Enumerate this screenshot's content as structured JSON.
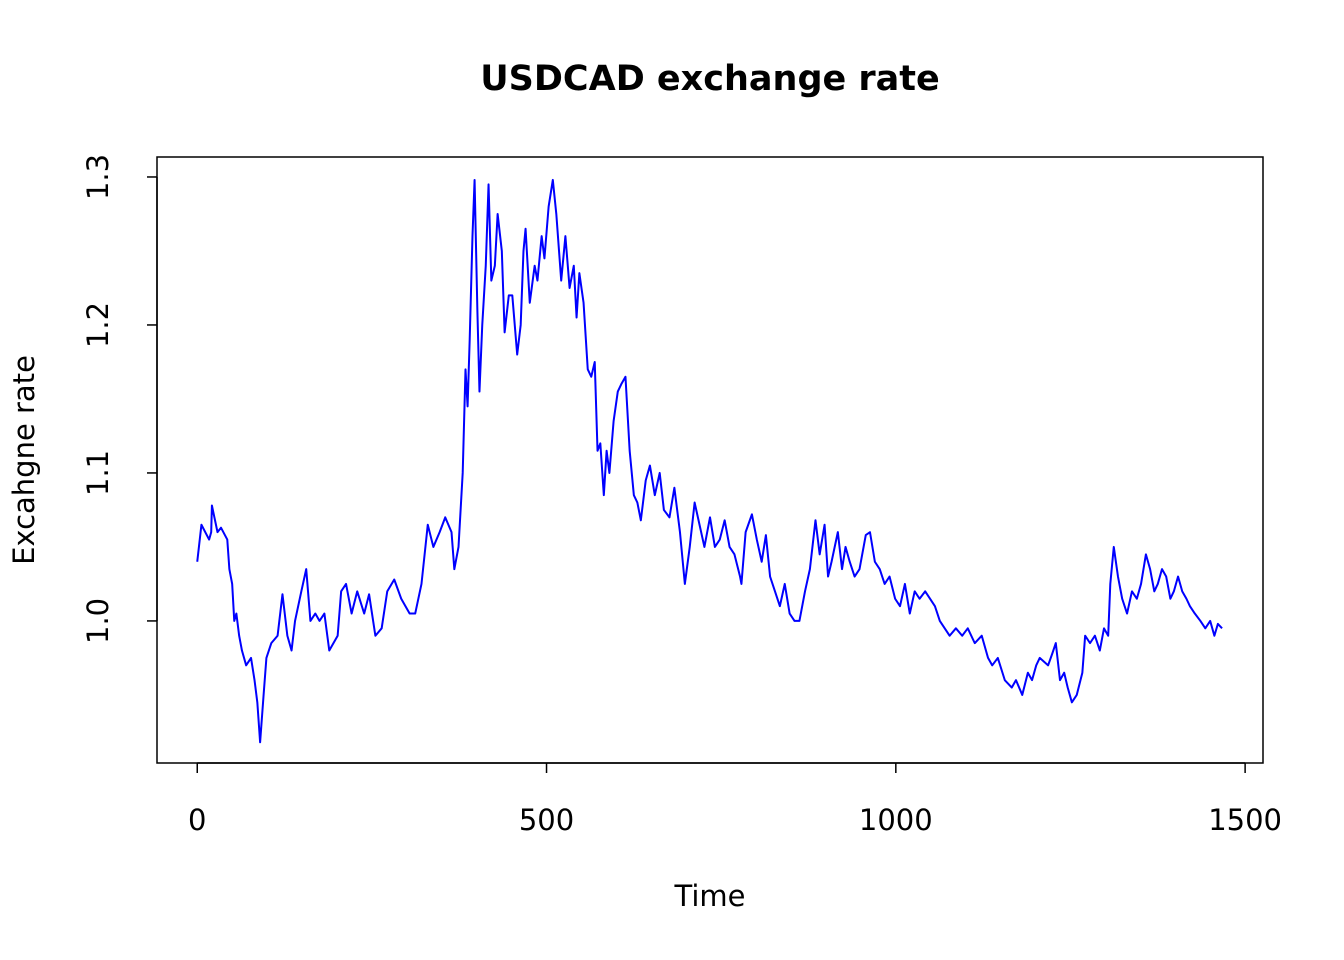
{
  "chart_data": {
    "type": "line",
    "title": "USDCAD exchange rate",
    "x_label": "Time",
    "y_label": "Excahgne rate",
    "xlim": [
      -57.6,
      1525.6
    ],
    "ylim": [
      0.904,
      1.3135
    ],
    "xticks": [
      0,
      500,
      1000,
      1500
    ],
    "yticks": [
      {
        "value": 1,
        "label": "1.0"
      },
      1.1,
      1.2,
      1.3
    ],
    "grid": false,
    "series": [
      {
        "color": "#0000ff",
        "x": [
          0,
          6,
          17,
          20,
          21,
          29,
          34,
          43,
          46,
          50,
          53,
          56,
          60,
          64,
          70,
          77,
          82,
          86,
          90,
          95,
          99,
          106,
          115,
          122,
          129,
          135,
          140,
          149,
          156,
          162,
          169,
          175,
          182,
          189,
          201,
          206,
          213,
          221,
          229,
          239,
          246,
          255,
          264,
          272,
          282,
          292,
          304,
          312,
          321,
          330,
          338,
          347,
          355,
          364,
          368,
          374,
          380,
          384,
          387,
          390,
          394,
          397,
          401,
          404,
          408,
          413,
          417,
          421,
          426,
          430,
          436,
          440,
          446,
          451,
          458,
          463,
          467,
          470,
          476,
          483,
          487,
          493,
          497,
          503,
          509,
          514,
          521,
          527,
          533,
          539,
          543,
          547,
          553,
          559,
          564,
          569,
          573,
          577,
          582,
          586,
          590,
          596,
          602,
          607,
          613,
          619,
          625,
          630,
          635,
          642,
          648,
          655,
          662,
          668,
          676,
          683,
          691,
          698,
          705,
          712,
          719,
          726,
          734,
          741,
          748,
          755,
          762,
          769,
          777,
          779,
          785,
          794,
          801,
          808,
          814,
          820,
          827,
          834,
          841,
          848,
          855,
          862,
          870,
          877,
          885,
          891,
          898,
          903,
          908,
          917,
          923,
          928,
          934,
          941,
          948,
          957,
          963,
          970,
          977,
          984,
          991,
          999,
          1006,
          1013,
          1020,
          1027,
          1034,
          1042,
          1056,
          1063,
          1077,
          1086,
          1095,
          1103,
          1113,
          1123,
          1132,
          1138,
          1146,
          1156,
          1166,
          1172,
          1181,
          1189,
          1195,
          1201,
          1206,
          1218,
          1224,
          1229,
          1235,
          1241,
          1246,
          1252,
          1259,
          1267,
          1271,
          1278,
          1285,
          1292,
          1298,
          1304,
          1307,
          1312,
          1318,
          1324,
          1331,
          1338,
          1345,
          1351,
          1358,
          1364,
          1370,
          1375,
          1381,
          1387,
          1393,
          1398,
          1404,
          1410,
          1416,
          1421,
          1428,
          1436,
          1443,
          1450,
          1456,
          1461,
          1467
        ],
        "values": [
          1.04,
          1.065,
          1.055,
          1.06,
          1.078,
          1.06,
          1.063,
          1.055,
          1.035,
          1.025,
          1.0,
          1.005,
          0.99,
          0.98,
          0.97,
          0.975,
          0.96,
          0.945,
          0.918,
          0.95,
          0.975,
          0.985,
          0.99,
          1.018,
          0.99,
          0.98,
          1.0,
          1.02,
          1.035,
          1.0,
          1.005,
          1.0,
          1.005,
          0.98,
          0.99,
          1.02,
          1.025,
          1.005,
          1.02,
          1.005,
          1.018,
          0.99,
          0.995,
          1.02,
          1.028,
          1.015,
          1.005,
          1.005,
          1.025,
          1.065,
          1.05,
          1.06,
          1.07,
          1.06,
          1.035,
          1.05,
          1.1,
          1.17,
          1.145,
          1.19,
          1.26,
          1.298,
          1.21,
          1.155,
          1.2,
          1.24,
          1.295,
          1.23,
          1.24,
          1.275,
          1.25,
          1.195,
          1.22,
          1.22,
          1.18,
          1.2,
          1.25,
          1.265,
          1.215,
          1.24,
          1.23,
          1.26,
          1.245,
          1.28,
          1.298,
          1.275,
          1.23,
          1.26,
          1.225,
          1.24,
          1.205,
          1.235,
          1.215,
          1.17,
          1.165,
          1.175,
          1.115,
          1.12,
          1.085,
          1.115,
          1.1,
          1.135,
          1.155,
          1.16,
          1.165,
          1.115,
          1.085,
          1.08,
          1.068,
          1.095,
          1.105,
          1.085,
          1.1,
          1.075,
          1.07,
          1.09,
          1.06,
          1.025,
          1.05,
          1.08,
          1.065,
          1.05,
          1.07,
          1.05,
          1.055,
          1.068,
          1.05,
          1.045,
          1.03,
          1.025,
          1.06,
          1.072,
          1.055,
          1.04,
          1.058,
          1.03,
          1.02,
          1.01,
          1.025,
          1.005,
          1.0,
          1.0,
          1.02,
          1.035,
          1.068,
          1.045,
          1.065,
          1.03,
          1.04,
          1.06,
          1.035,
          1.05,
          1.04,
          1.03,
          1.035,
          1.058,
          1.06,
          1.04,
          1.035,
          1.025,
          1.03,
          1.015,
          1.01,
          1.025,
          1.005,
          1.02,
          1.015,
          1.02,
          1.01,
          1.0,
          0.99,
          0.995,
          0.99,
          0.995,
          0.985,
          0.99,
          0.975,
          0.97,
          0.975,
          0.96,
          0.955,
          0.96,
          0.95,
          0.965,
          0.96,
          0.97,
          0.975,
          0.97,
          0.978,
          0.985,
          0.96,
          0.965,
          0.955,
          0.945,
          0.95,
          0.965,
          0.99,
          0.985,
          0.99,
          0.98,
          0.995,
          0.99,
          1.025,
          1.05,
          1.03,
          1.015,
          1.005,
          1.02,
          1.015,
          1.025,
          1.045,
          1.035,
          1.02,
          1.025,
          1.035,
          1.03,
          1.015,
          1.02,
          1.03,
          1.02,
          1.015,
          1.01,
          1.005,
          1.0,
          0.995,
          1.0,
          0.99,
          0.998,
          0.995
        ]
      }
    ]
  }
}
